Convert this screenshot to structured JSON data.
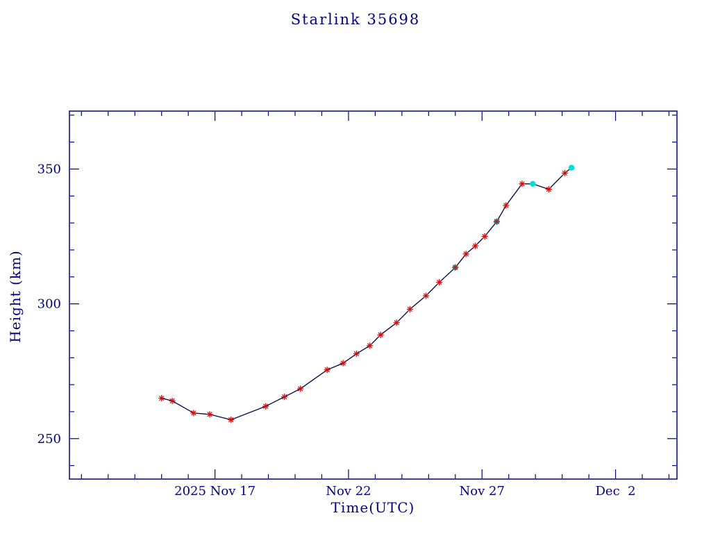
{
  "title": "Starlink 35698",
  "colors": {
    "axis": "#000080",
    "text": "#000080",
    "line": "#000045",
    "marker_star": "#cc1111",
    "marker_dot": "#00dddd",
    "background": "#ffffff"
  },
  "chart_data": {
    "type": "line",
    "title": "Starlink 35698",
    "xlabel": "Time(UTC)",
    "ylabel": "Height (km)",
    "x_unit": "day of 2025 Nov (UTC); 32 = Dec 2",
    "xlim": [
      11.55,
      34.3
    ],
    "ylim": [
      235,
      371.5
    ],
    "grid": false,
    "legend": "none",
    "x_major_ticks": [
      {
        "value": 17,
        "label": "2025 Nov 17"
      },
      {
        "value": 22,
        "label": "Nov 22"
      },
      {
        "value": 27,
        "label": "Nov 27"
      },
      {
        "value": 32,
        "label": "Dec  2"
      }
    ],
    "x_minor_tick_interval": 1,
    "y_major_ticks": [
      {
        "value": 250,
        "label": "250"
      },
      {
        "value": 300,
        "label": "300"
      },
      {
        "value": 350,
        "label": "350"
      }
    ],
    "y_minor_tick_interval": 10,
    "series": [
      {
        "name": "orbital-height",
        "marker_legend": {
          "star": "measured element (red asterisk)",
          "dot": "highlighted element (cyan dot)"
        },
        "points": [
          {
            "x": 15.0,
            "y": 265.0,
            "marker": "star"
          },
          {
            "x": 15.4,
            "y": 264.0,
            "marker": "star"
          },
          {
            "x": 16.2,
            "y": 259.5,
            "marker": "star"
          },
          {
            "x": 16.8,
            "y": 259.0,
            "marker": "star"
          },
          {
            "x": 17.6,
            "y": 257.0,
            "marker": "star"
          },
          {
            "x": 18.9,
            "y": 262.0,
            "marker": "star"
          },
          {
            "x": 19.6,
            "y": 265.5,
            "marker": "star"
          },
          {
            "x": 20.2,
            "y": 268.5,
            "marker": "star"
          },
          {
            "x": 21.2,
            "y": 275.5,
            "marker": "star"
          },
          {
            "x": 21.8,
            "y": 278.0,
            "marker": "star"
          },
          {
            "x": 22.3,
            "y": 281.5,
            "marker": "star"
          },
          {
            "x": 22.8,
            "y": 284.5,
            "marker": "star"
          },
          {
            "x": 23.2,
            "y": 288.5,
            "marker": "star"
          },
          {
            "x": 23.8,
            "y": 293.0,
            "marker": "star"
          },
          {
            "x": 24.3,
            "y": 298.0,
            "marker": "star"
          },
          {
            "x": 24.9,
            "y": 303.0,
            "marker": "star"
          },
          {
            "x": 25.4,
            "y": 308.0,
            "marker": "star"
          },
          {
            "x": 26.0,
            "y": 313.5,
            "marker": "both"
          },
          {
            "x": 26.4,
            "y": 318.5,
            "marker": "star"
          },
          {
            "x": 26.75,
            "y": 321.5,
            "marker": "star"
          },
          {
            "x": 27.1,
            "y": 325.0,
            "marker": "star"
          },
          {
            "x": 27.55,
            "y": 330.5,
            "marker": "both"
          },
          {
            "x": 27.9,
            "y": 336.5,
            "marker": "star"
          },
          {
            "x": 28.5,
            "y": 344.5,
            "marker": "star"
          },
          {
            "x": 28.9,
            "y": 344.5,
            "marker": "dot"
          },
          {
            "x": 29.5,
            "y": 342.5,
            "marker": "star"
          },
          {
            "x": 30.1,
            "y": 348.5,
            "marker": "star"
          },
          {
            "x": 30.35,
            "y": 350.5,
            "marker": "dot"
          }
        ]
      }
    ]
  }
}
